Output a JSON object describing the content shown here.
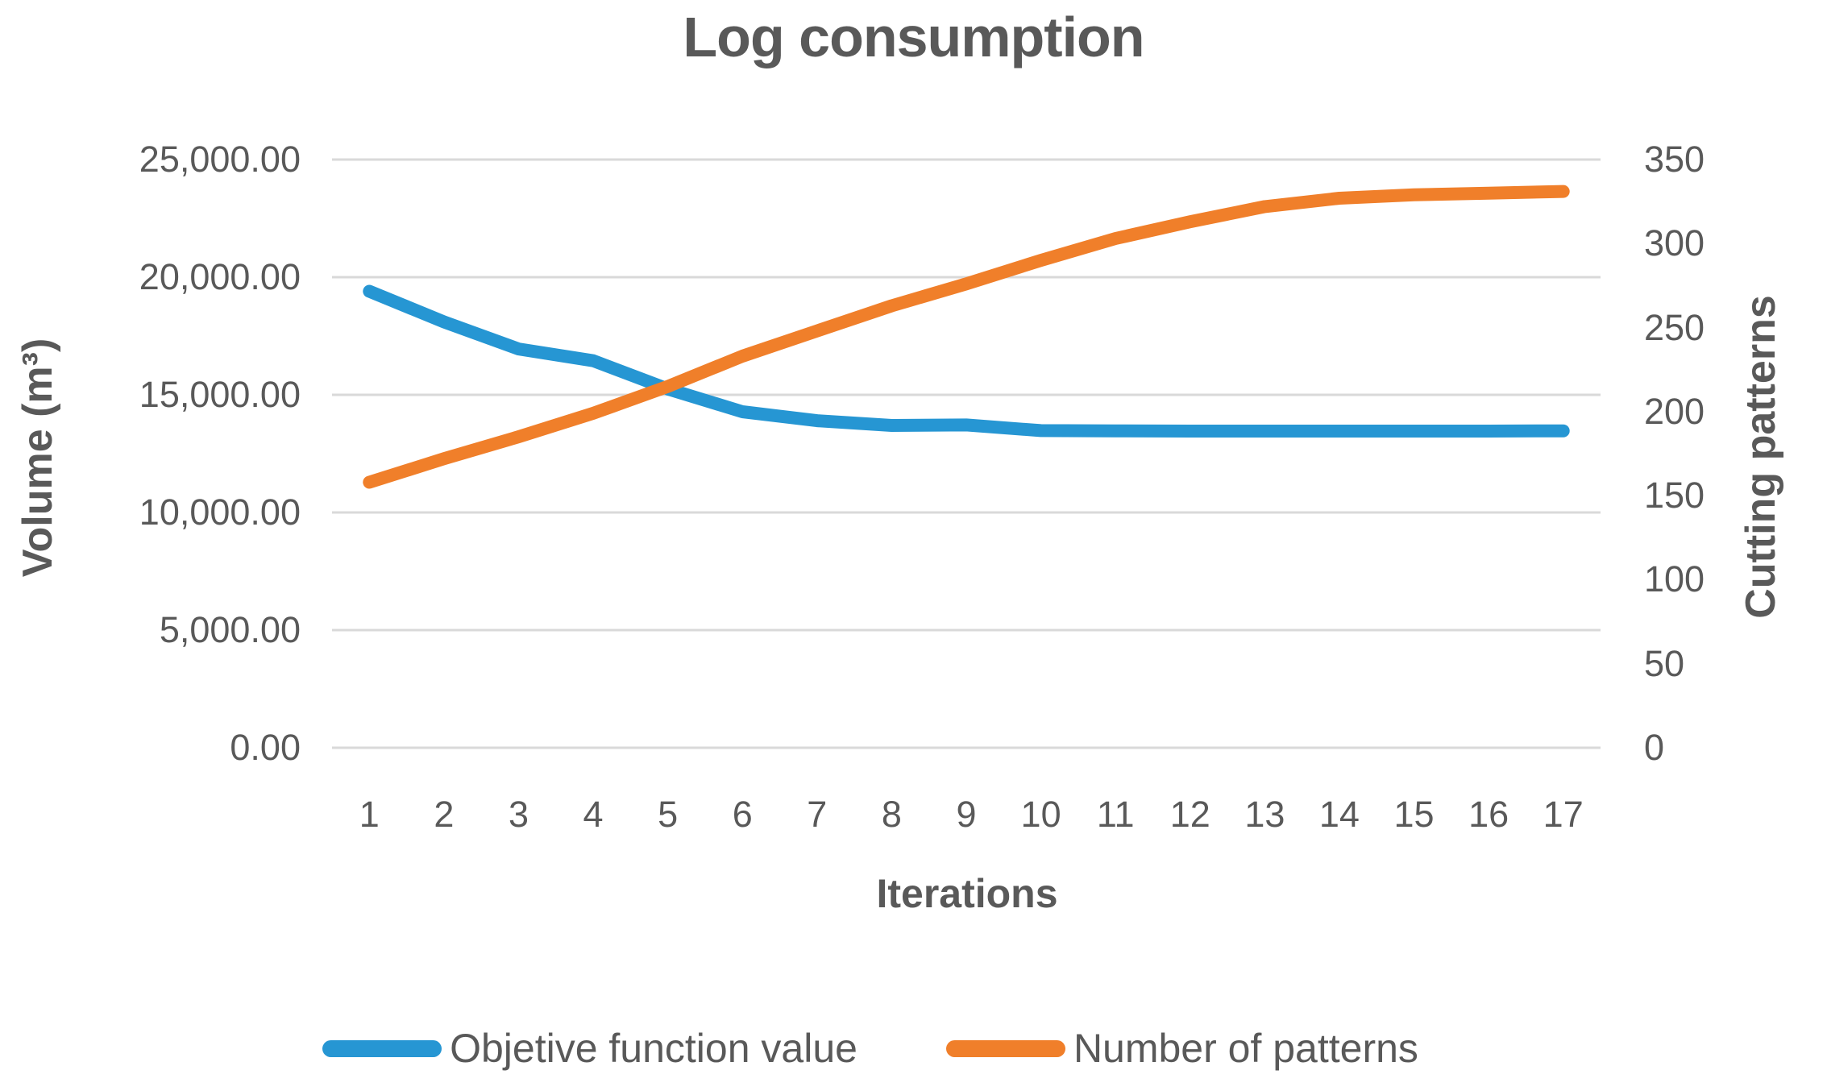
{
  "title": "Log consumption",
  "chart_data": {
    "type": "line",
    "title": "Log consumption",
    "xlabel": "Iterations",
    "x_categories": [
      "1",
      "2",
      "3",
      "4",
      "5",
      "6",
      "7",
      "8",
      "9",
      "10",
      "11",
      "12",
      "13",
      "14",
      "15",
      "16",
      "17"
    ],
    "grid": true,
    "legend_position": "bottom",
    "left_axis": {
      "title": "Volume (m³)",
      "min": 0,
      "max": 25000,
      "tick_labels": [
        "0.00",
        "5,000.00",
        "10,000.00",
        "15,000.00",
        "20,000.00",
        "25,000.00"
      ]
    },
    "right_axis": {
      "title": "Cutting patterns",
      "min": 0,
      "max": 350,
      "tick_labels": [
        "0",
        "50",
        "100",
        "150",
        "200",
        "250",
        "300",
        "350"
      ]
    },
    "series": [
      {
        "name": "Objetive function value",
        "axis": "left",
        "color": "#2696D3",
        "values": [
          19400,
          18100,
          16950,
          16450,
          15250,
          14280,
          13900,
          13700,
          13720,
          13480,
          13470,
          13460,
          13460,
          13460,
          13460,
          13460,
          13470
        ]
      },
      {
        "name": "Number of patterns",
        "axis": "right",
        "color": "#F07F2A",
        "values": [
          158,
          172,
          185,
          199,
          215,
          233,
          248,
          263,
          276,
          290,
          303,
          313,
          322,
          327,
          329,
          330,
          331
        ]
      }
    ]
  },
  "colors": {
    "grid": "#D9D9D9",
    "text": "#595959",
    "background": "#FFFFFF"
  }
}
